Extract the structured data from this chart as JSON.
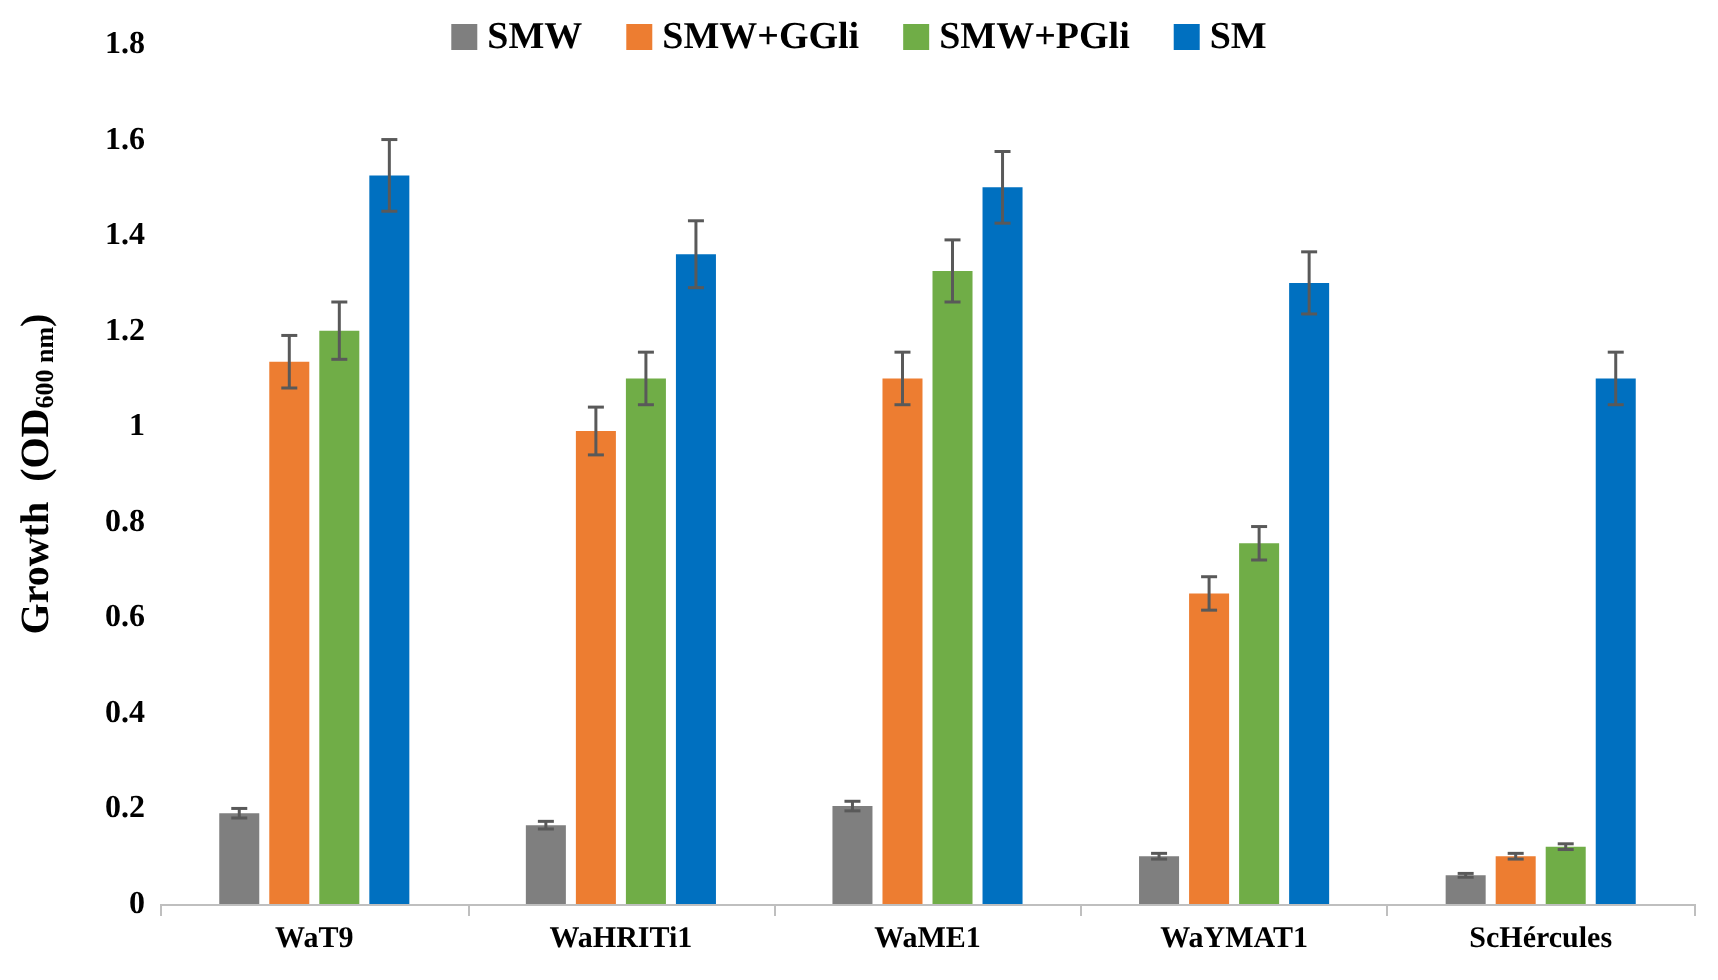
{
  "chart_data": {
    "type": "bar",
    "ylabel": "Growth  (OD$_{600 nm}$)",
    "categories": [
      "WaT9",
      "WaHRITi1",
      "WaME1",
      "WaYMAT1",
      "ScHércules"
    ],
    "series": [
      {
        "name": "SMW",
        "color": "#7f7f7f",
        "values": [
          0.19,
          0.165,
          0.205,
          0.1,
          0.06
        ],
        "errors": [
          0.01,
          0.008,
          0.01,
          0.006,
          0.004
        ]
      },
      {
        "name": "SMW+GGli",
        "color": "#ed7d31",
        "values": [
          1.135,
          0.99,
          1.1,
          0.65,
          0.1
        ],
        "errors": [
          0.055,
          0.05,
          0.055,
          0.035,
          0.006
        ]
      },
      {
        "name": "SMW+PGli",
        "color": "#70ad47",
        "values": [
          1.2,
          1.1,
          1.325,
          0.755,
          0.12
        ],
        "errors": [
          0.06,
          0.055,
          0.065,
          0.035,
          0.006
        ]
      },
      {
        "name": "SM",
        "color": "#0070c0",
        "values": [
          1.525,
          1.36,
          1.5,
          1.3,
          1.1
        ],
        "errors": [
          0.075,
          0.07,
          0.075,
          0.065,
          0.055
        ]
      }
    ],
    "ylim": [
      0,
      1.8
    ],
    "yticks": [
      0,
      0.2,
      0.4,
      0.6,
      0.8,
      1,
      1.2,
      1.4,
      1.6,
      1.8
    ],
    "grid": false,
    "legend": "top"
  }
}
